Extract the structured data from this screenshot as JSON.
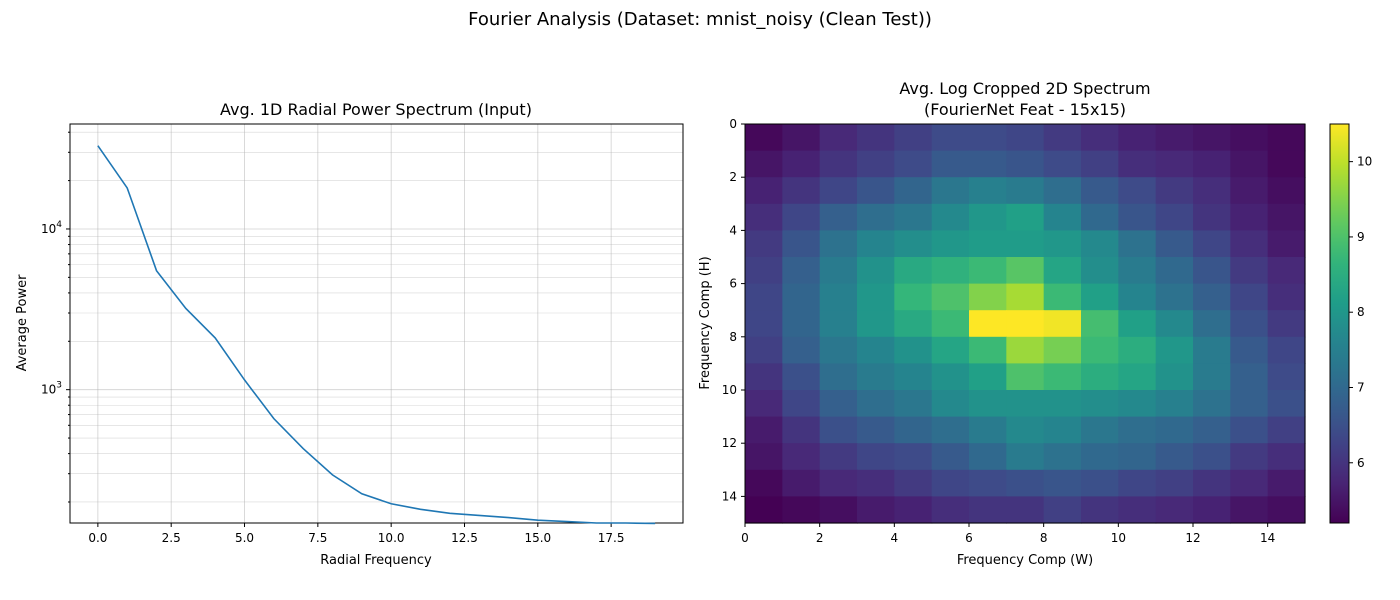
{
  "figure": {
    "title": "Fourier Analysis (Dataset: mnist_noisy (Clean Test))"
  },
  "chart_data": [
    {
      "type": "line",
      "title": "Avg. 1D Radial Power Spectrum (Input)",
      "xlabel": "Radial Frequency",
      "ylabel": "Average Power",
      "yscale": "log",
      "xlim": [
        -0.95,
        19.95
      ],
      "ylim": [
        148,
        45000
      ],
      "xticks": [
        0,
        2.5,
        5,
        7.5,
        10,
        12.5,
        15,
        17.5
      ],
      "xtick_labels": [
        "0.0",
        "2.5",
        "5.0",
        "7.5",
        "10.0",
        "12.5",
        "15.0",
        "17.5"
      ],
      "ytick_labels": [
        {
          "base": "10",
          "exp": "3",
          "value": 1000
        },
        {
          "base": "10",
          "exp": "4",
          "value": 10000
        }
      ],
      "grid": true,
      "color": "#1f77b4",
      "series": [
        {
          "x": [
            0,
            1,
            2,
            3,
            4,
            5,
            6,
            7,
            8,
            9,
            10,
            11,
            12,
            13,
            14,
            15,
            16,
            17,
            18,
            19
          ],
          "values": [
            33000,
            18000,
            5500,
            3200,
            2100,
            1150,
            660,
            430,
            295,
            225,
            195,
            180,
            170,
            165,
            160,
            154,
            151,
            148,
            148,
            147
          ]
        }
      ]
    },
    {
      "type": "heatmap",
      "title": "Avg. Log Cropped 2D Spectrum\n(FourierNet Feat - 15x15)",
      "xlabel": "Frequency Comp (W)",
      "ylabel": "Frequency Comp (H)",
      "xticks": [
        0,
        2,
        4,
        6,
        8,
        10,
        12,
        14
      ],
      "yticks": [
        0,
        2,
        4,
        6,
        8,
        10,
        12,
        14
      ],
      "colormap": "viridis",
      "vmin": 5.2,
      "vmax": 10.5,
      "colorbar_ticks": [
        6,
        7,
        8,
        9,
        10
      ],
      "values": [
        [
          5.3,
          5.5,
          5.8,
          6.0,
          6.2,
          6.4,
          6.4,
          6.3,
          6.1,
          5.9,
          5.7,
          5.6,
          5.5,
          5.4,
          5.3
        ],
        [
          5.5,
          5.7,
          6.0,
          6.2,
          6.4,
          6.7,
          6.7,
          6.6,
          6.4,
          6.2,
          5.9,
          5.8,
          5.7,
          5.5,
          5.3
        ],
        [
          5.7,
          6.0,
          6.3,
          6.6,
          6.9,
          7.3,
          7.5,
          7.4,
          7.1,
          6.7,
          6.4,
          6.1,
          5.9,
          5.6,
          5.4
        ],
        [
          5.9,
          6.3,
          6.8,
          7.1,
          7.3,
          7.7,
          8.0,
          8.2,
          7.6,
          7.0,
          6.6,
          6.3,
          6.0,
          5.7,
          5.5
        ],
        [
          6.1,
          6.6,
          7.2,
          7.6,
          7.8,
          8.0,
          8.1,
          8.1,
          8.0,
          7.7,
          7.2,
          6.7,
          6.3,
          5.9,
          5.6
        ],
        [
          6.2,
          6.8,
          7.4,
          7.9,
          8.4,
          8.6,
          8.8,
          9.1,
          8.3,
          7.8,
          7.4,
          7.0,
          6.6,
          6.1,
          5.8
        ],
        [
          6.3,
          6.9,
          7.5,
          8.0,
          8.7,
          9.0,
          9.5,
          9.8,
          8.8,
          8.2,
          7.6,
          7.2,
          6.8,
          6.3,
          5.9
        ],
        [
          6.3,
          6.9,
          7.5,
          8.0,
          8.4,
          8.8,
          10.5,
          10.5,
          10.4,
          8.9,
          8.2,
          7.7,
          7.1,
          6.5,
          6.1
        ],
        [
          6.2,
          6.8,
          7.3,
          7.6,
          7.9,
          8.3,
          8.8,
          9.7,
          9.4,
          8.8,
          8.5,
          8.0,
          7.4,
          6.7,
          6.3
        ],
        [
          6.0,
          6.5,
          7.1,
          7.4,
          7.6,
          7.9,
          8.2,
          9.0,
          8.8,
          8.5,
          8.3,
          7.9,
          7.4,
          6.8,
          6.4
        ],
        [
          5.8,
          6.3,
          6.8,
          7.1,
          7.3,
          7.7,
          7.9,
          7.9,
          7.9,
          7.8,
          7.7,
          7.5,
          7.2,
          6.8,
          6.5
        ],
        [
          5.6,
          6.0,
          6.5,
          6.7,
          6.9,
          7.1,
          7.4,
          7.7,
          7.6,
          7.3,
          7.1,
          7.0,
          6.8,
          6.5,
          6.2
        ],
        [
          5.5,
          5.8,
          6.1,
          6.3,
          6.4,
          6.7,
          7.0,
          7.4,
          7.2,
          7.0,
          6.9,
          6.7,
          6.5,
          6.1,
          5.9
        ],
        [
          5.3,
          5.6,
          5.8,
          5.9,
          6.1,
          6.3,
          6.4,
          6.5,
          6.6,
          6.5,
          6.3,
          6.2,
          6.0,
          5.8,
          5.6
        ],
        [
          5.2,
          5.3,
          5.4,
          5.6,
          5.7,
          5.9,
          6.0,
          6.0,
          6.2,
          6.0,
          5.9,
          5.8,
          5.7,
          5.5,
          5.4
        ]
      ]
    }
  ]
}
